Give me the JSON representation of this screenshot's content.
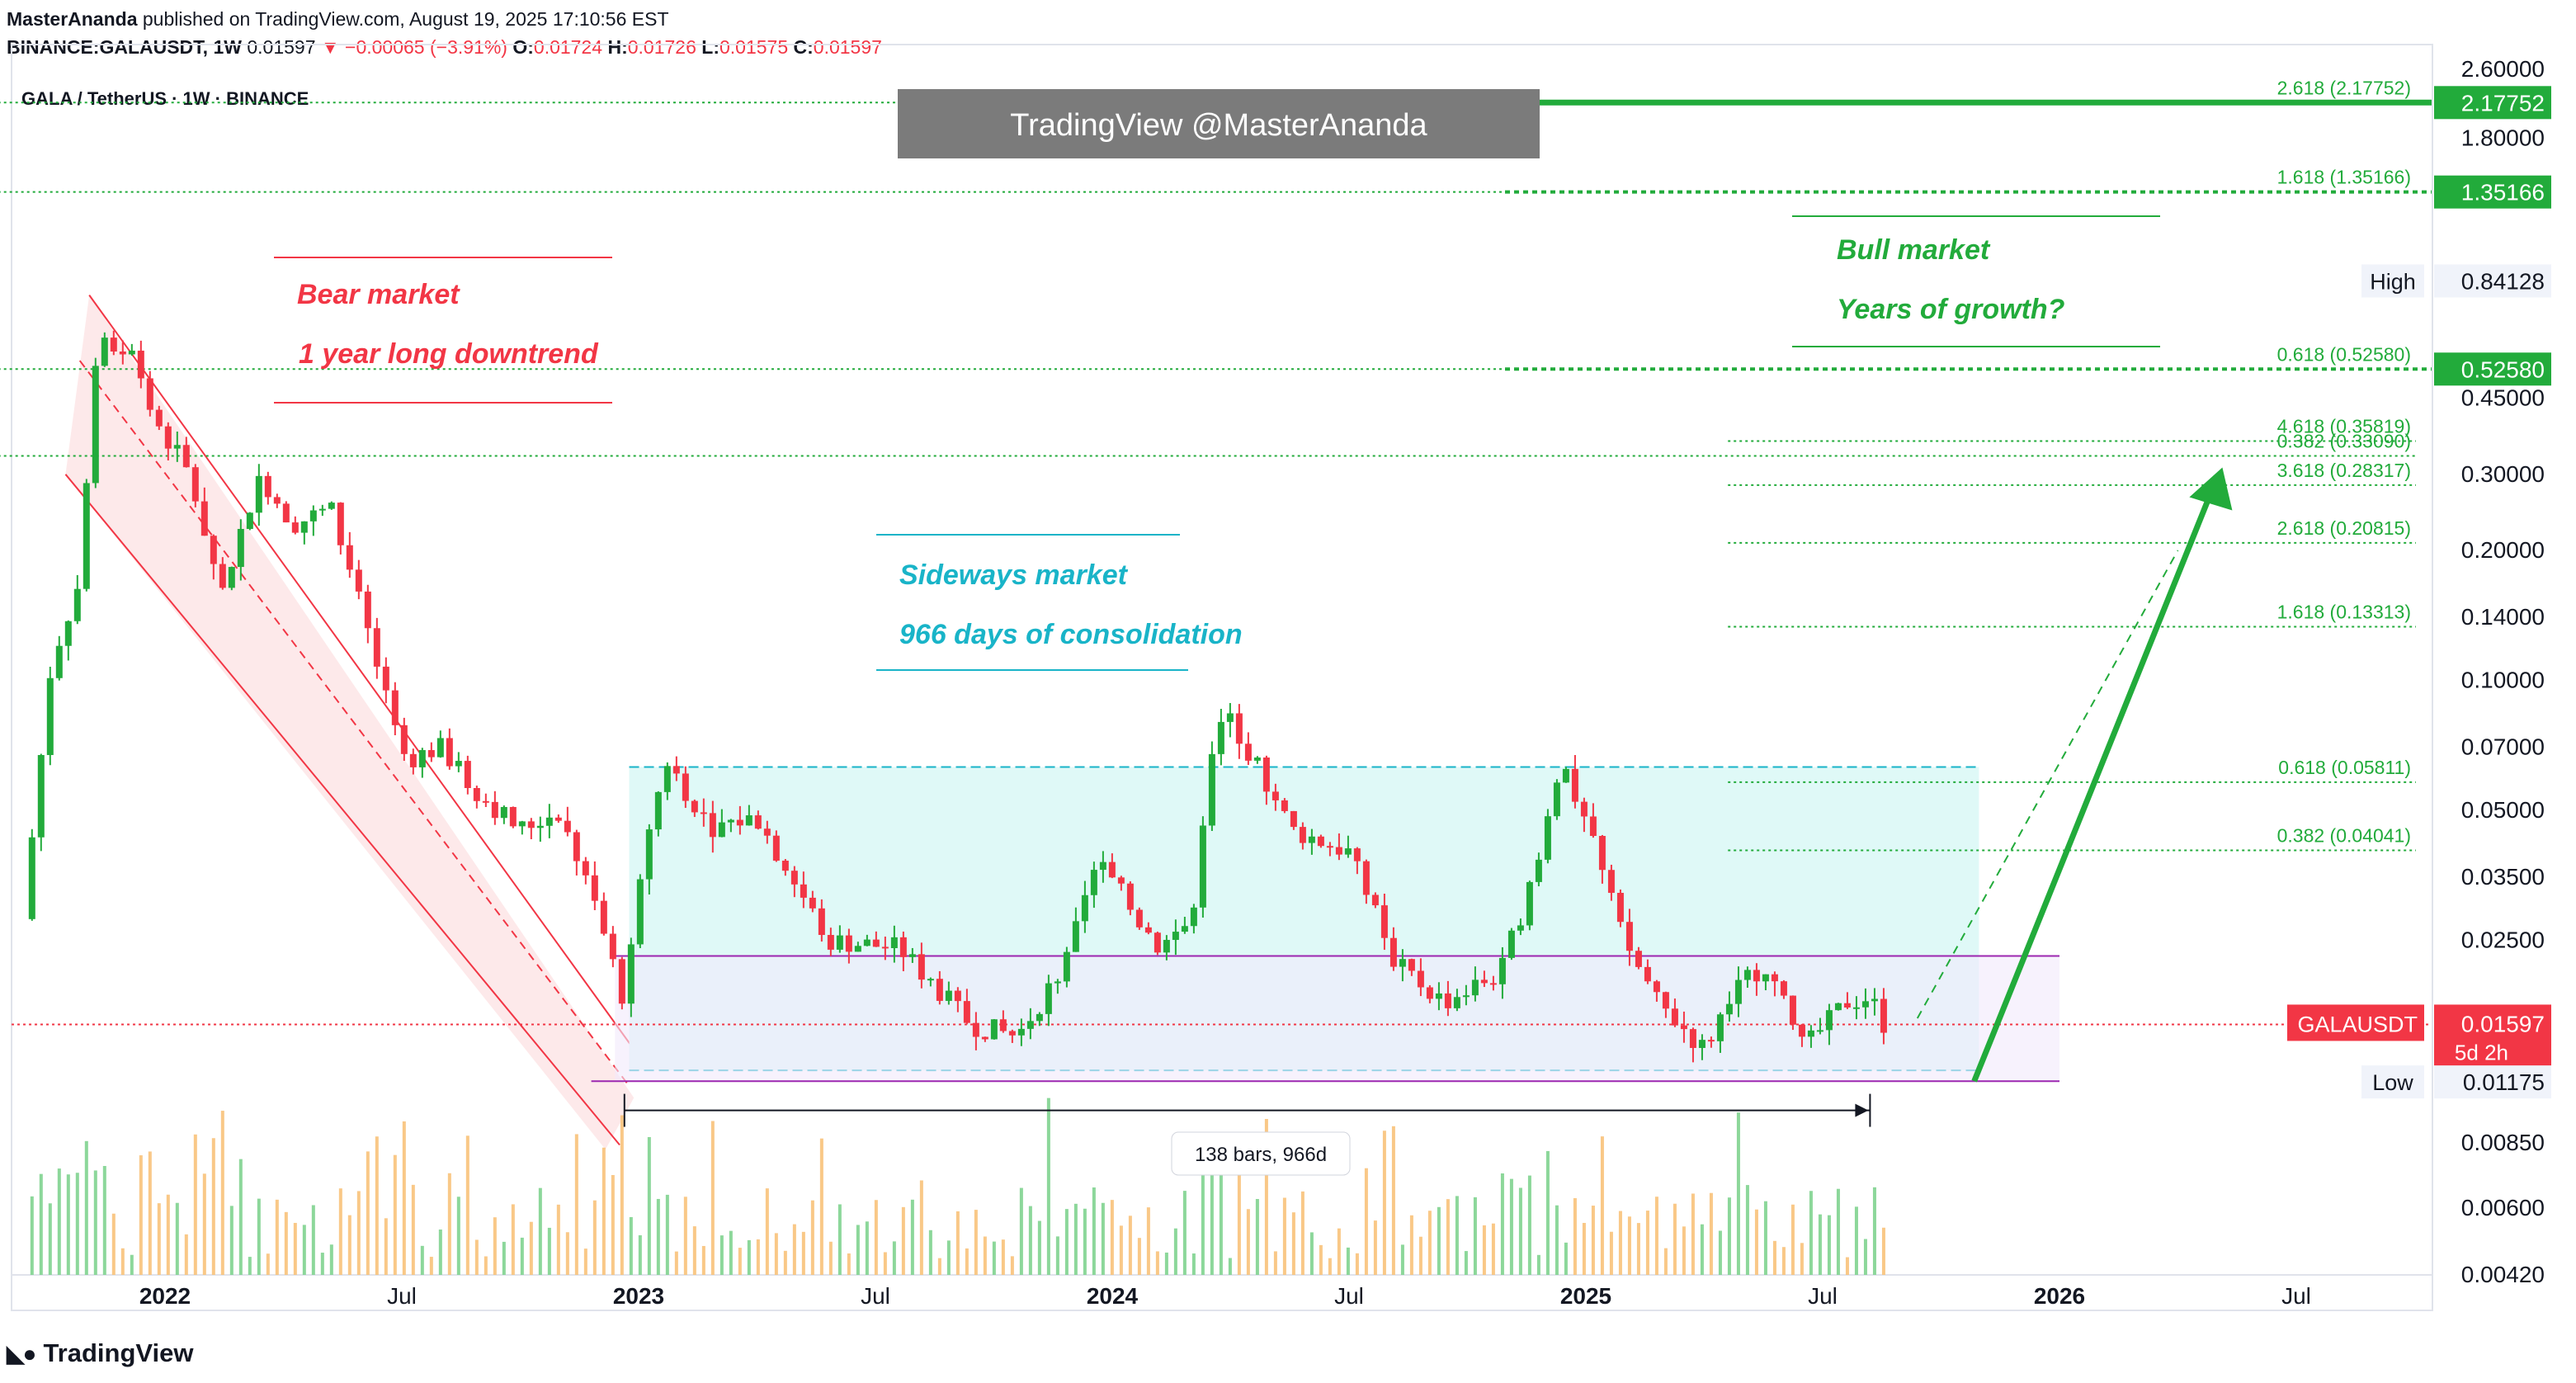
{
  "header": {
    "author": "MasterAnanda",
    "published": "published on TradingView.com, August 19, 2025 17:10:56 EST",
    "symbol_line": "BINANCE:GALAUSDT, 1W",
    "last": "0.01597",
    "change": "−0.00065 (−3.91%)",
    "o_label": "O:",
    "o": "0.01724",
    "h_label": "H:",
    "h": "0.01726",
    "l_label": "L:",
    "l": "0.01575",
    "c_label": "C:",
    "c": "0.01597"
  },
  "footer": {
    "brand": "TradingView",
    "logo_icon": "tradingview-logo-icon"
  },
  "chart_data": {
    "type": "candlestick",
    "title": "GALA / TetherUS · 1W · BINANCE",
    "scale": "log",
    "ylim": [
      0.0042,
      2.6
    ],
    "price_ticks": [
      "2.60000",
      "1.80000",
      "0.45000",
      "0.30000",
      "0.20000",
      "0.14000",
      "0.10000",
      "0.07000",
      "0.05000",
      "0.03500",
      "0.02500",
      "0.00850",
      "0.00600",
      "0.00420"
    ],
    "time_labels": [
      {
        "label": "2022",
        "bold": true,
        "t": 2022.0
      },
      {
        "label": "Jul",
        "bold": false,
        "t": 2022.5
      },
      {
        "label": "2023",
        "bold": true,
        "t": 2023.0
      },
      {
        "label": "Jul",
        "bold": false,
        "t": 2023.5
      },
      {
        "label": "2024",
        "bold": true,
        "t": 2024.0
      },
      {
        "label": "Jul",
        "bold": false,
        "t": 2024.5
      },
      {
        "label": "2025",
        "bold": true,
        "t": 2025.0
      },
      {
        "label": "Jul",
        "bold": false,
        "t": 2025.5
      },
      {
        "label": "2026",
        "bold": true,
        "t": 2026.0
      },
      {
        "label": "Jul",
        "bold": false,
        "t": 2026.5
      }
    ],
    "price_path": [
      [
        2021.7,
        0.028
      ],
      [
        2021.76,
        0.11
      ],
      [
        2021.82,
        0.17
      ],
      [
        2021.86,
        0.7
      ],
      [
        2021.89,
        0.55
      ],
      [
        2021.93,
        0.6
      ],
      [
        2021.97,
        0.42
      ],
      [
        2022.05,
        0.3
      ],
      [
        2022.12,
        0.16
      ],
      [
        2022.2,
        0.3
      ],
      [
        2022.27,
        0.23
      ],
      [
        2022.35,
        0.25
      ],
      [
        2022.42,
        0.14
      ],
      [
        2022.5,
        0.065
      ],
      [
        2022.58,
        0.07
      ],
      [
        2022.66,
        0.055
      ],
      [
        2022.75,
        0.045
      ],
      [
        2022.83,
        0.05
      ],
      [
        2022.9,
        0.032
      ],
      [
        2022.97,
        0.018
      ],
      [
        2023.02,
        0.045
      ],
      [
        2023.06,
        0.065
      ],
      [
        2023.15,
        0.046
      ],
      [
        2023.25,
        0.048
      ],
      [
        2023.4,
        0.025
      ],
      [
        2023.55,
        0.024
      ],
      [
        2023.7,
        0.016
      ],
      [
        2023.8,
        0.015
      ],
      [
        2023.9,
        0.022
      ],
      [
        2023.97,
        0.038
      ],
      [
        2024.1,
        0.024
      ],
      [
        2024.17,
        0.028
      ],
      [
        2024.2,
        0.06
      ],
      [
        2024.24,
        0.085
      ],
      [
        2024.3,
        0.065
      ],
      [
        2024.38,
        0.045
      ],
      [
        2024.5,
        0.04
      ],
      [
        2024.6,
        0.022
      ],
      [
        2024.7,
        0.018
      ],
      [
        2024.82,
        0.021
      ],
      [
        2024.9,
        0.038
      ],
      [
        2024.95,
        0.065
      ],
      [
        2025.02,
        0.04
      ],
      [
        2025.08,
        0.025
      ],
      [
        2025.15,
        0.018
      ],
      [
        2025.25,
        0.014
      ],
      [
        2025.32,
        0.02
      ],
      [
        2025.38,
        0.022
      ],
      [
        2025.46,
        0.014
      ],
      [
        2025.55,
        0.018
      ],
      [
        2025.6,
        0.0185
      ],
      [
        2025.63,
        0.01597
      ]
    ],
    "volume_note": "weekly volume histogram, green/orange",
    "price_labels": [
      {
        "text": "2.17752",
        "v": 2.17752,
        "style": "green-box"
      },
      {
        "text": "1.35166",
        "v": 1.35166,
        "style": "green-box"
      },
      {
        "text": "0.84128",
        "v": 0.84128,
        "style": "plain",
        "tag": "High"
      },
      {
        "text": "0.52580",
        "v": 0.5258,
        "style": "green-box"
      },
      {
        "text": "0.01597",
        "v": 0.01597,
        "style": "red-box",
        "tag": "GALAUSDT",
        "sub": "5d 2h"
      },
      {
        "text": "0.01175",
        "v": 0.01175,
        "style": "plain",
        "tag": "Low"
      }
    ],
    "fib_levels": [
      {
        "label": "2.618 (2.17752)",
        "v": 2.17752,
        "x0": 2021.55,
        "thick": true
      },
      {
        "label": "1.618 (1.35166)",
        "v": 1.35166,
        "x0": 2021.55,
        "thick": true
      },
      {
        "label": "0.618 (0.52580)",
        "v": 0.5258,
        "x0": 2021.55,
        "thick": true
      },
      {
        "label": "4.618 (0.35819)",
        "v": 0.35819,
        "x0": 2025.3,
        "thick": false
      },
      {
        "label": "0.382 (0.33090)",
        "v": 0.3309,
        "x0": 2021.55,
        "thick": false
      },
      {
        "label": "3.618 (0.28317)",
        "v": 0.28317,
        "x0": 2025.3,
        "thick": false
      },
      {
        "label": "2.618 (0.20815)",
        "v": 0.20815,
        "x0": 2025.3,
        "thick": false
      },
      {
        "label": "1.618 (0.13313)",
        "v": 0.13313,
        "x0": 2025.3,
        "thick": false
      },
      {
        "label": "0.618 (0.05811)",
        "v": 0.05811,
        "x0": 2025.3,
        "thick": false
      },
      {
        "label": "0.382 (0.04041)",
        "v": 0.04041,
        "x0": 2025.3,
        "thick": false
      }
    ],
    "annotations": {
      "watermark": "TradingView @MasterAnanda",
      "bear_1": "Bear market",
      "bear_2": "1 year long downtrend",
      "side_1": "Sideways market",
      "side_2": "966 days of consolidation",
      "bull_1": "Bull market",
      "bull_2": "Years of growth?",
      "range_label": "138 bars, 966d"
    },
    "colors": {
      "green": "#22ab3b",
      "red": "#f23645",
      "teal": "#19b4c8",
      "orange": "#f5a623",
      "purple": "#9c27b0",
      "channel_fill": "#fde3e5",
      "range_fill": "#dff9f7"
    },
    "grid": false
  }
}
